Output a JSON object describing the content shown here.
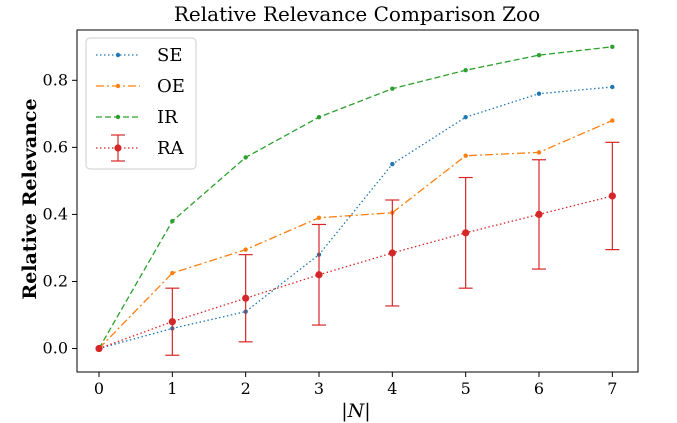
{
  "chart_data": {
    "type": "line",
    "title": "Relative Relevance Comparison Zoo",
    "xlabel": "|N|",
    "ylabel": "Relative Relevance",
    "x": [
      0,
      1,
      2,
      3,
      4,
      5,
      6,
      7
    ],
    "xlim": [
      -0.3,
      7.35
    ],
    "ylim": [
      -0.07,
      0.95
    ],
    "xticks": [
      "0",
      "1",
      "2",
      "3",
      "4",
      "5",
      "6",
      "7"
    ],
    "xtick_values": [
      0,
      1,
      2,
      3,
      4,
      5,
      6,
      7
    ],
    "yticks": [
      "0.0",
      "0.2",
      "0.4",
      "0.6",
      "0.8"
    ],
    "ytick_values": [
      0.0,
      0.2,
      0.4,
      0.6,
      0.8
    ],
    "grid": false,
    "legend_position": "top-left",
    "series": [
      {
        "name": "SE",
        "color": "#1f77b4",
        "linestyle": "dotted",
        "marker": "dot",
        "values": [
          0.0,
          0.06,
          0.11,
          0.28,
          0.55,
          0.69,
          0.76,
          0.78
        ]
      },
      {
        "name": "OE",
        "color": "#ff7f0e",
        "linestyle": "dashdot",
        "marker": "dot",
        "values": [
          0.0,
          0.225,
          0.295,
          0.39,
          0.405,
          0.575,
          0.585,
          0.68
        ]
      },
      {
        "name": "IR",
        "color": "#2ca02c",
        "linestyle": "dashed",
        "marker": "dot",
        "values": [
          0.0,
          0.38,
          0.57,
          0.69,
          0.775,
          0.83,
          0.875,
          0.9
        ]
      },
      {
        "name": "RA",
        "color": "#d62728",
        "linestyle": "dotted",
        "marker": "circle",
        "errorbars": true,
        "values": [
          0.0,
          0.08,
          0.15,
          0.22,
          0.285,
          0.345,
          0.4,
          0.455
        ],
        "error": [
          0.0,
          0.1,
          0.13,
          0.15,
          0.158,
          0.165,
          0.163,
          0.16
        ]
      }
    ]
  }
}
